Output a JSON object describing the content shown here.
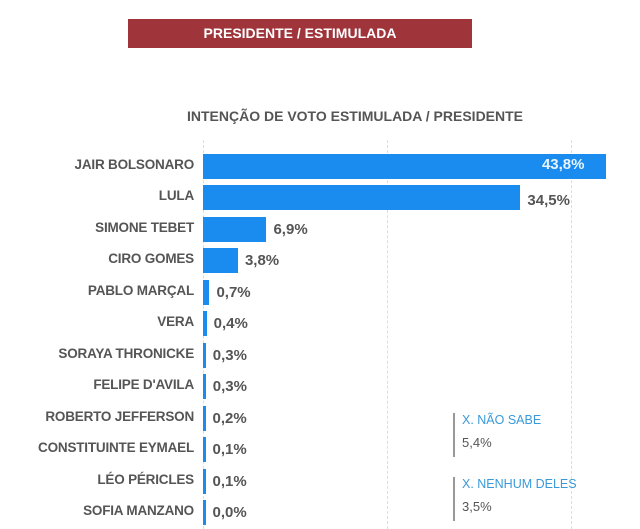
{
  "banner": "PRESIDENTE / ESTIMULADA",
  "colors": {
    "banner": "#a0343b",
    "bar": "#1a8cf0",
    "side_label": "#3a9ad9"
  },
  "chart_data": {
    "type": "bar",
    "orientation": "horizontal",
    "title": "INTENÇÃO DE VOTO ESTIMULADA / PRESIDENTE",
    "categories": [
      "JAIR BOLSONARO",
      "LULA",
      "SIMONE TEBET",
      "CIRO GOMES",
      "PABLO MARÇAL",
      "VERA",
      "SORAYA THRONICKE",
      "FELIPE D'AVILA",
      "ROBERTO JEFFERSON",
      "CONSTITUINTE EYMAEL",
      "LÉO PÉRICLES",
      "SOFIA MANZANO"
    ],
    "values": [
      43.8,
      34.5,
      6.9,
      3.8,
      0.7,
      0.4,
      0.3,
      0.3,
      0.2,
      0.1,
      0.1,
      0.0
    ],
    "value_labels": [
      "43,8%",
      "34,5%",
      "6,9%",
      "3,8%",
      "0,7%",
      "0,4%",
      "0,3%",
      "0,3%",
      "0,2%",
      "0,1%",
      "0,1%",
      "0,0%"
    ],
    "xlim": [
      0,
      45
    ],
    "grid": true,
    "extra": [
      {
        "label": "X. NÃO SABE",
        "value": "5,4%"
      },
      {
        "label": "X. NENHUM DELES",
        "value": "3,5%"
      }
    ]
  }
}
